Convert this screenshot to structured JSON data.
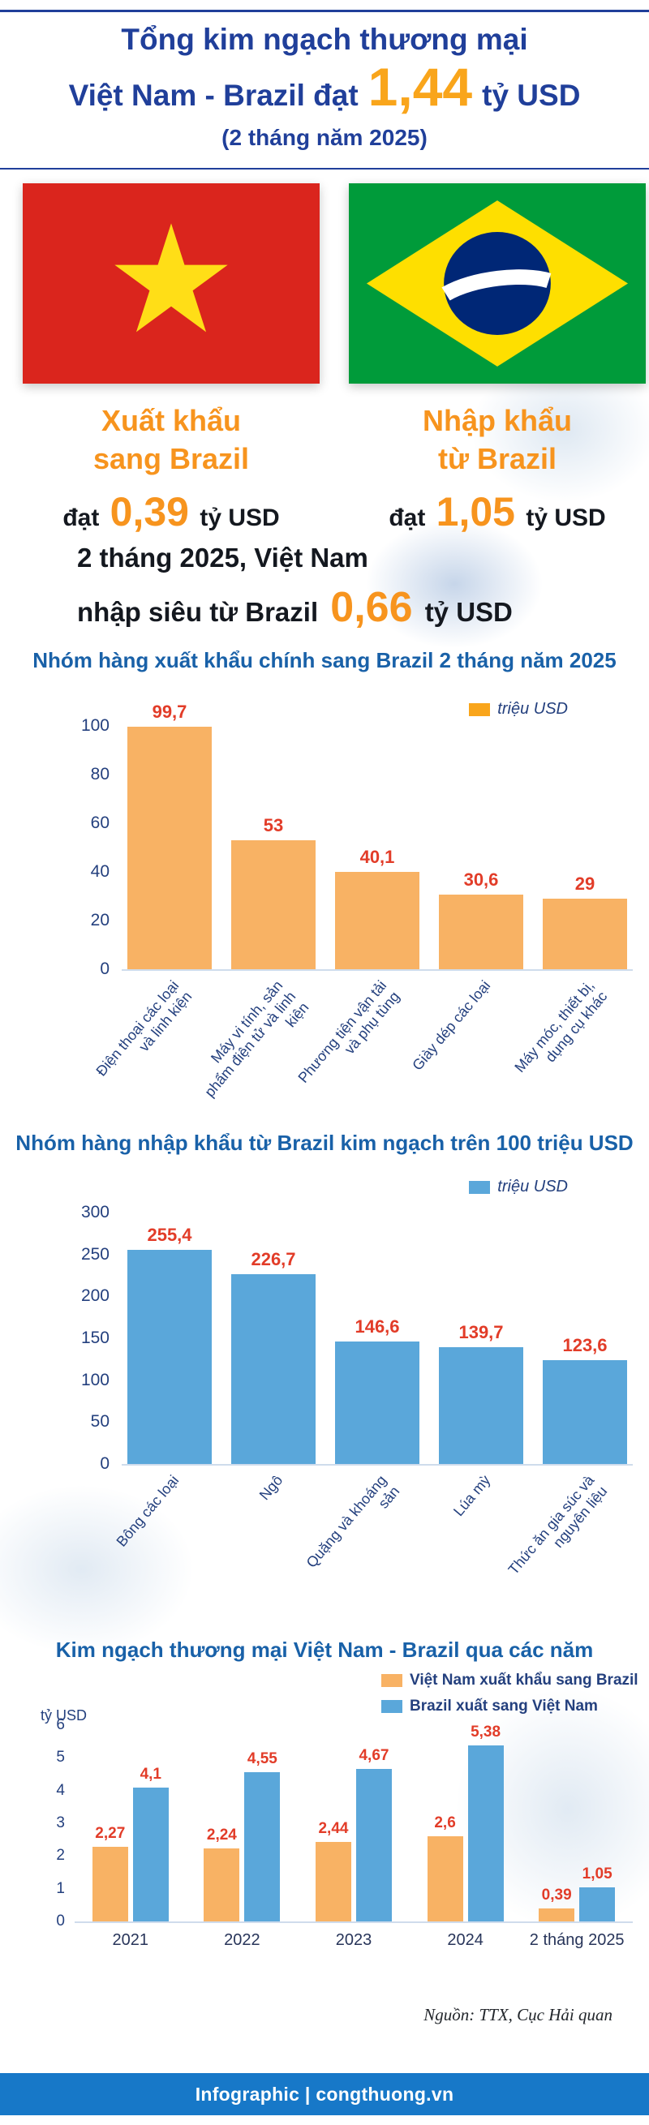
{
  "header": {
    "title_line1": "Tổng kim ngạch thương mại",
    "title_line2_prefix": "Việt Nam - Brazil đạt",
    "total_value": "1,44",
    "title_line2_suffix": "tỷ USD",
    "subtitle": "(2 tháng năm 2025)"
  },
  "stats": {
    "export": {
      "heading_line1": "Xuất khẩu",
      "heading_line2": "sang Brazil",
      "prefix": "đạt",
      "value": "0,39",
      "suffix": "tỷ USD"
    },
    "import": {
      "heading_line1": "Nhập khẩu",
      "heading_line2": "từ Brazil",
      "prefix": "đạt",
      "value": "1,05",
      "suffix": "tỷ USD"
    }
  },
  "surplus": {
    "line1": "2 tháng 2025, Việt Nam",
    "line2_prefix": "nhập siêu từ Brazil",
    "value": "0,66",
    "suffix": "tỷ USD"
  },
  "source": {
    "text": "Nguồn: TTX, Cục Hải quan"
  },
  "footer": {
    "text": "Infographic | congthuong.vn"
  },
  "colors": {
    "navy": "#203f9a",
    "chart-title-blue": "#1961a8",
    "orange": "#f7941e",
    "orange-bright": "#f9a51b",
    "value-red": "#e23c28",
    "bar-orange": "#f8b264",
    "bar-blue": "#5aa7da",
    "footer-blue": "#1778c8",
    "axis-navy": "#24407e"
  },
  "chart_data": [
    {
      "type": "bar",
      "title": "Nhóm hàng xuất khẩu chính sang Brazil 2 tháng năm 2025",
      "legend": [
        {
          "label": "triệu USD",
          "color": "#f9a51b"
        }
      ],
      "categories": [
        "Điện thoại các loại và linh kiện",
        "Máy vi tính, sản phẩm điện tử và linh kiện",
        "Phương tiện vận tải và phụ tùng",
        "Giày dép các loại",
        "Máy móc, thiết bị, dụng cụ khác"
      ],
      "values": [
        99.7,
        53,
        40.1,
        30.6,
        29
      ],
      "value_labels": [
        "99,7",
        "53",
        "40,1",
        "30,6",
        "29"
      ],
      "xlabel": "",
      "ylabel": "triệu USD",
      "ylim": [
        0,
        100
      ],
      "ytick_step": 20,
      "grid": false,
      "legend_position": "top-right",
      "bar_color": "#f8b264",
      "label_color": "#e23c28"
    },
    {
      "type": "bar",
      "title": "Nhóm hàng nhập khẩu từ Brazil kim ngạch trên 100 triệu USD",
      "legend": [
        {
          "label": "triệu USD",
          "color": "#5aa7da"
        }
      ],
      "categories": [
        "Bông các loại",
        "Ngô",
        "Quặng và khoáng sản",
        "Lúa mỳ",
        "Thức ăn gia súc và nguyên liệu"
      ],
      "values": [
        255.4,
        226.7,
        146.6,
        139.7,
        123.6
      ],
      "value_labels": [
        "255,4",
        "226,7",
        "146,6",
        "139,7",
        "123,6"
      ],
      "xlabel": "",
      "ylabel": "triệu USD",
      "ylim": [
        0,
        300
      ],
      "ytick_step": 50,
      "grid": false,
      "legend_position": "top-right",
      "bar_color": "#5aa7da",
      "label_color": "#e23c28"
    },
    {
      "type": "bar",
      "title": "Kim ngạch thương mại Việt Nam - Brazil qua các năm",
      "ylabel": "tỷ USD",
      "categories": [
        "2021",
        "2022",
        "2023",
        "2024",
        "2 tháng 2025"
      ],
      "series": [
        {
          "name": "Việt Nam xuất khẩu sang Brazil",
          "color": "#f8b264",
          "values": [
            2.27,
            2.24,
            2.44,
            2.6,
            0.39
          ],
          "value_labels": [
            "2,27",
            "2,24",
            "2,44",
            "2,6",
            "0,39"
          ]
        },
        {
          "name": "Brazil xuất sang Việt Nam",
          "color": "#5aa7da",
          "values": [
            4.1,
            4.55,
            4.67,
            5.38,
            1.05
          ],
          "value_labels": [
            "4,1",
            "4,55",
            "4,67",
            "5,38",
            "1,05"
          ]
        }
      ],
      "ylim": [
        0,
        6
      ],
      "ytick_step": 1,
      "grid": false,
      "legend_position": "top-right",
      "label_color": "#e23c28"
    }
  ]
}
